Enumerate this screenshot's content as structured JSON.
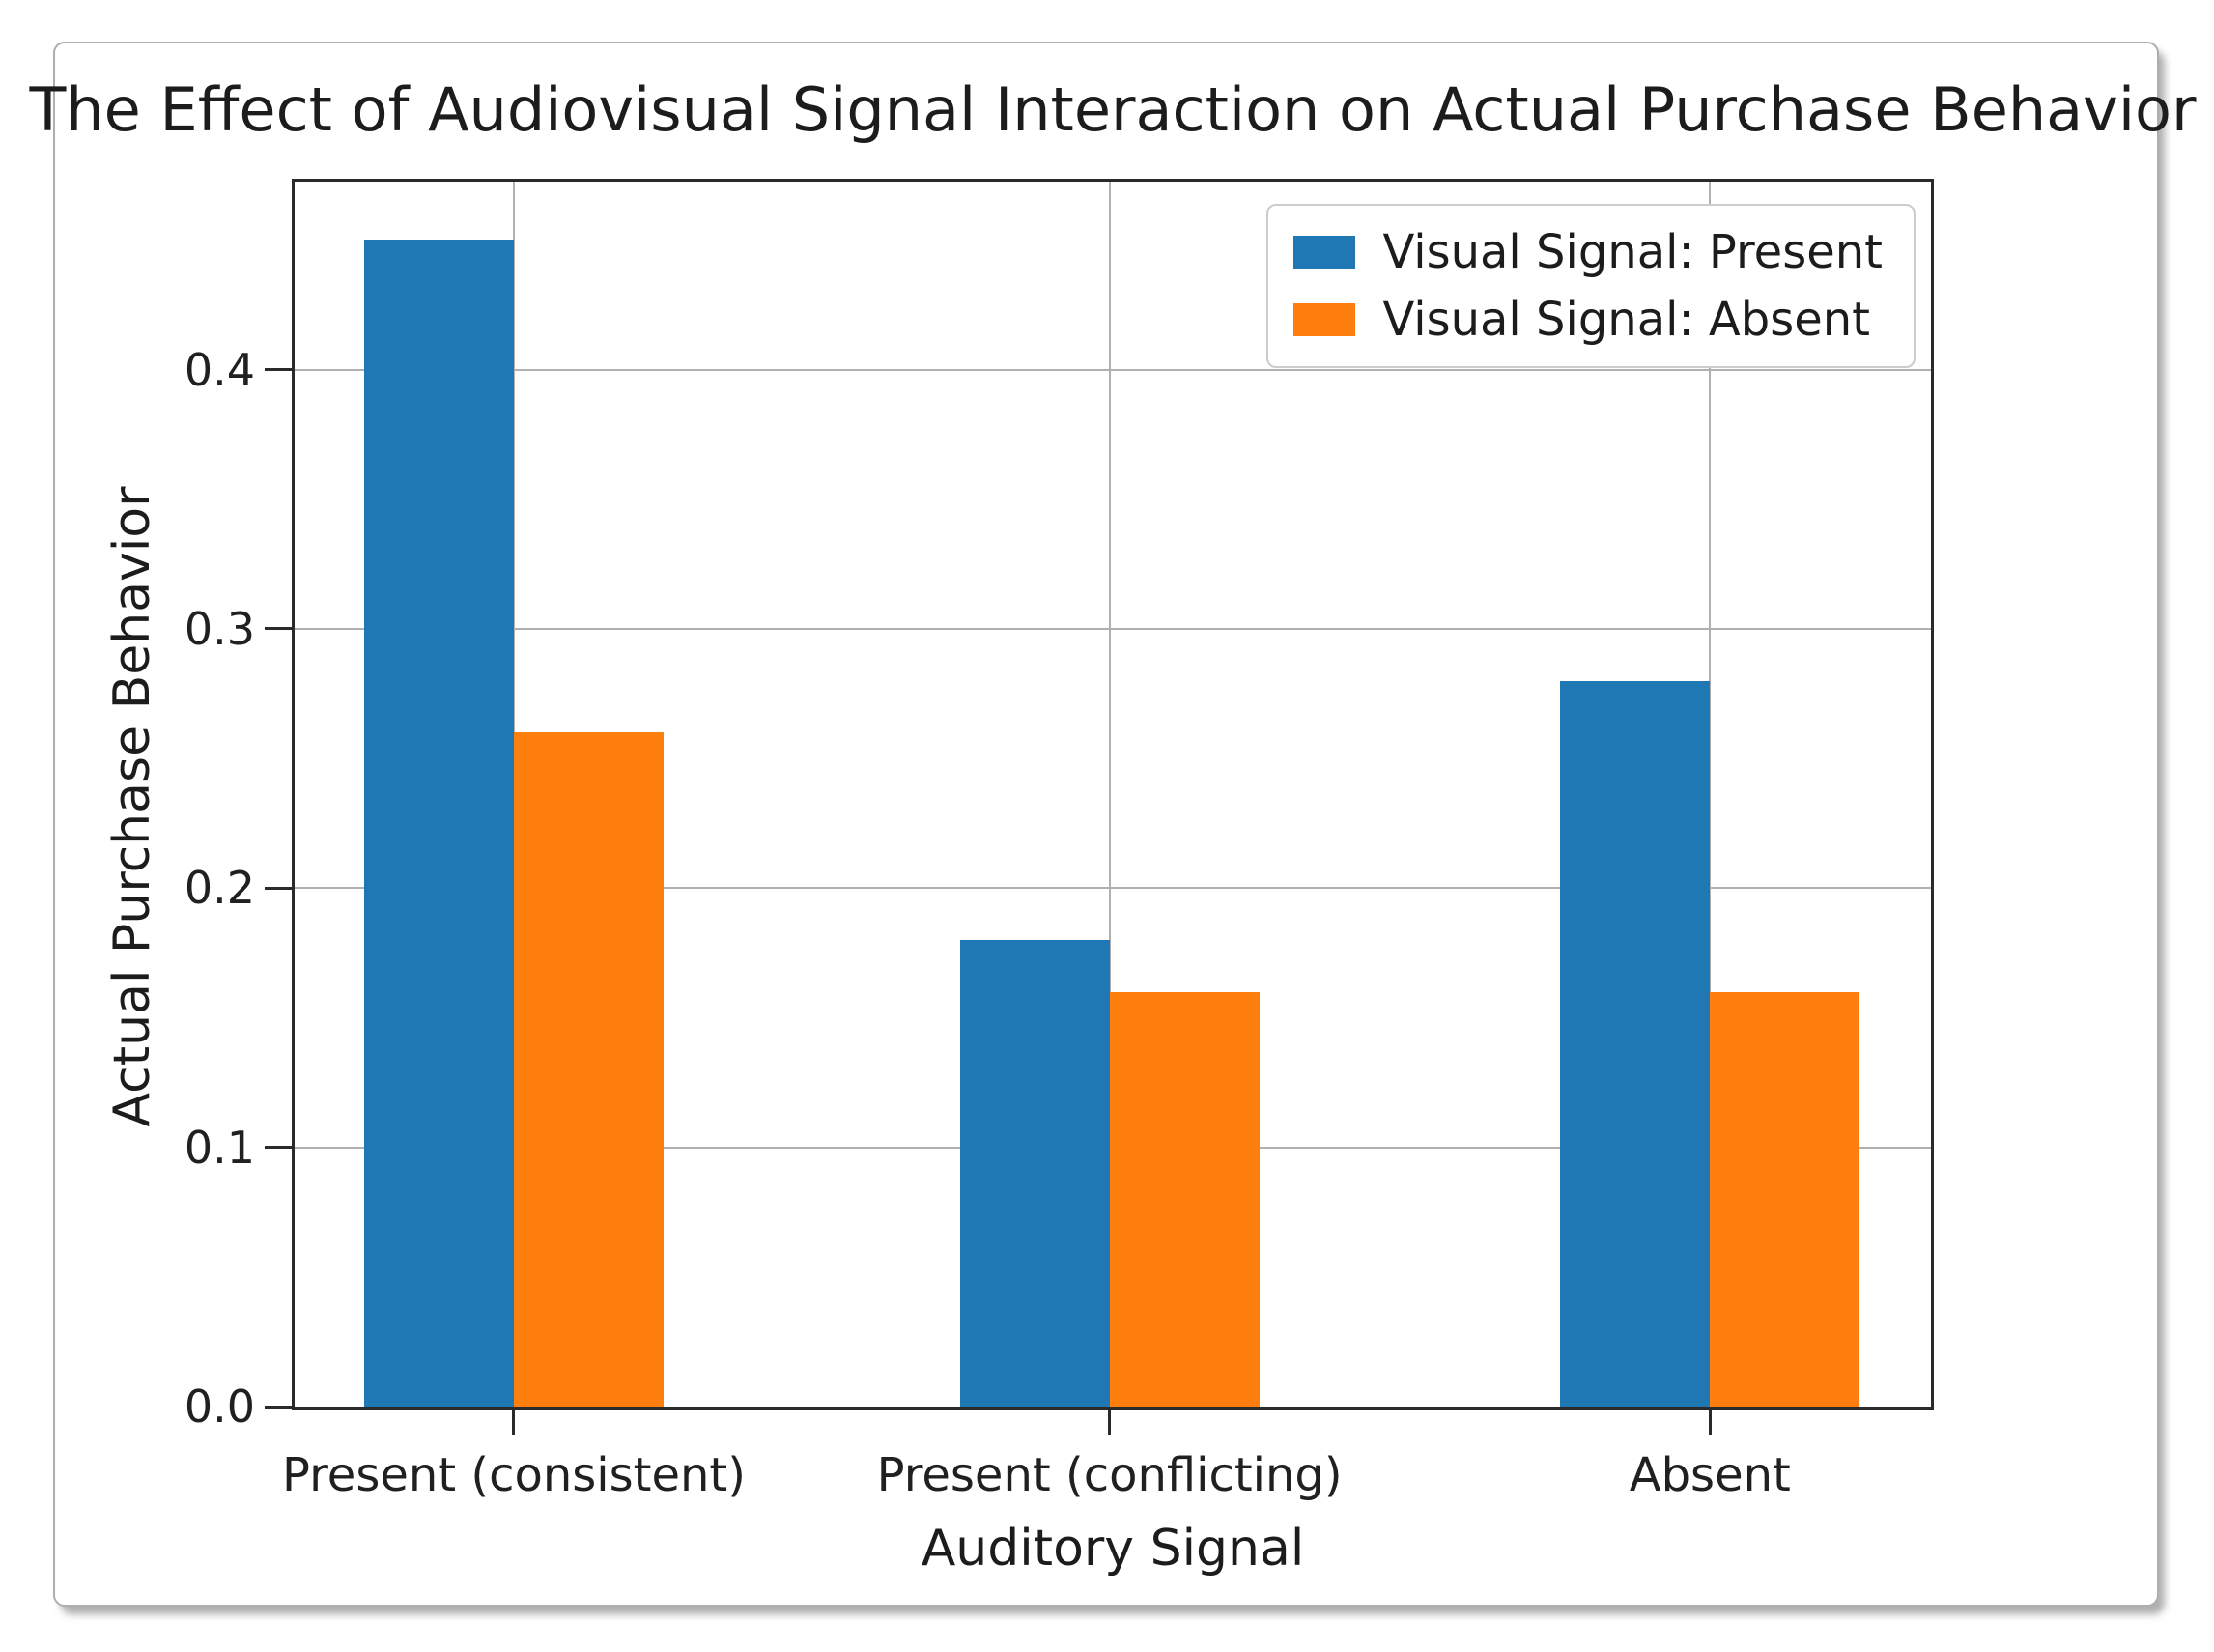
{
  "chart_data": {
    "type": "bar",
    "title": "The Effect of Audiovisual Signal Interaction on Actual Purchase Behavior",
    "xlabel": "Auditory Signal",
    "ylabel": "Actual Purchase Behavior",
    "categories": [
      "Present (consistent)",
      "Present (conflicting)",
      "Absent"
    ],
    "series": [
      {
        "name": "Visual Signal: Present",
        "color": "#1f77b4",
        "values": [
          0.45,
          0.18,
          0.28
        ]
      },
      {
        "name": "Visual Signal: Absent",
        "color": "#ff7f0e",
        "values": [
          0.26,
          0.16,
          0.16
        ]
      }
    ],
    "yticks": [
      0.0,
      0.1,
      0.2,
      0.3,
      0.4
    ],
    "ytick_labels": [
      "0.0",
      "0.1",
      "0.2",
      "0.3",
      "0.4"
    ],
    "ylim": [
      0,
      0.4725
    ],
    "grid": true,
    "grid_axes": "both",
    "legend_position": "upper right",
    "colors": {
      "bar_present": "#1f77b4",
      "bar_absent": "#ff7f0e",
      "gridline": "#b0b0b0",
      "spine": "#2a2a2a",
      "background": "#ffffff"
    }
  }
}
